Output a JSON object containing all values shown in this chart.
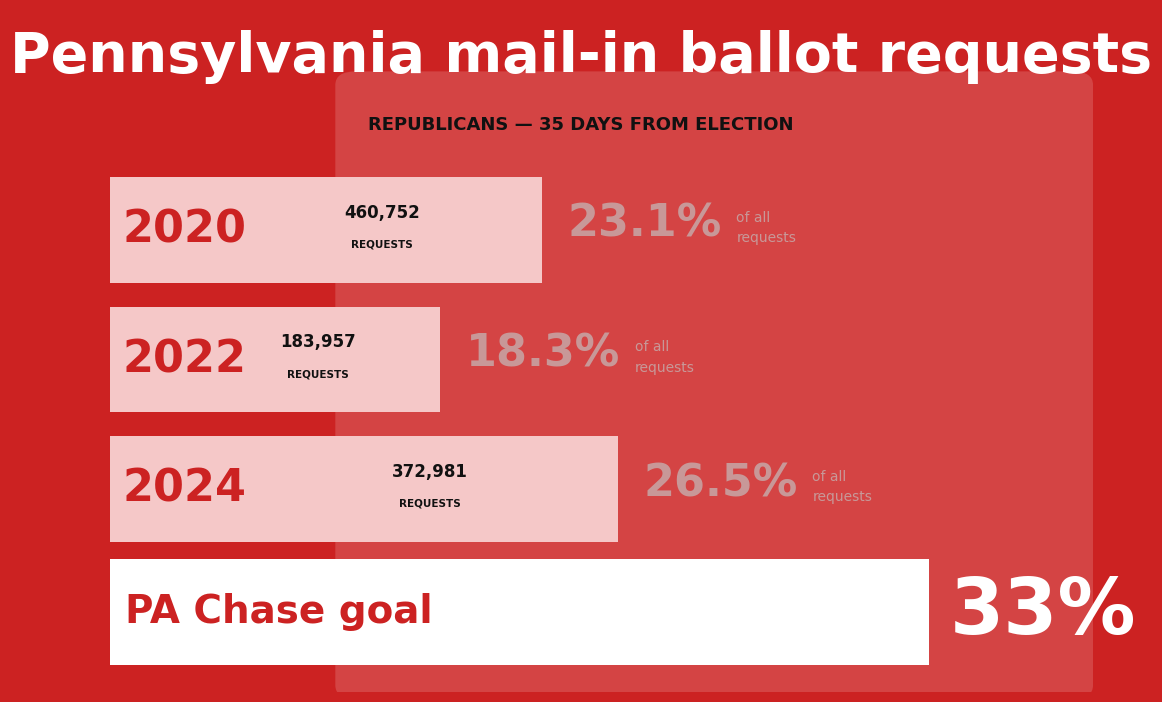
{
  "title": "Pennsylvania mail-in ballot requests",
  "subtitle": "REPUBLICANS — 35 DAYS FROM ELECTION",
  "background_color": "#cc2222",
  "pa_shape_color": "#d44444",
  "rows": [
    {
      "year": "2020",
      "requests": "460,752",
      "pct": "23.1",
      "bar_width": 0.68
    },
    {
      "year": "2022",
      "requests": "183,957",
      "pct": "18.3",
      "bar_width": 0.52
    },
    {
      "year": "2024",
      "requests": "372,981",
      "pct": "26.5",
      "bar_width": 0.8
    }
  ],
  "goal_label": "PA Chase goal",
  "goal_pct": "33%",
  "light_bar_color": "#f5c8c8",
  "white_bar_color": "#ffffff",
  "year_color": "#cc2222",
  "pct_color": "#c89898",
  "requests_color": "#111111",
  "title_color": "#ffffff",
  "subtitle_color": "#111111",
  "goal_text_color": "#cc2222",
  "goal_pct_color": "#ffffff"
}
